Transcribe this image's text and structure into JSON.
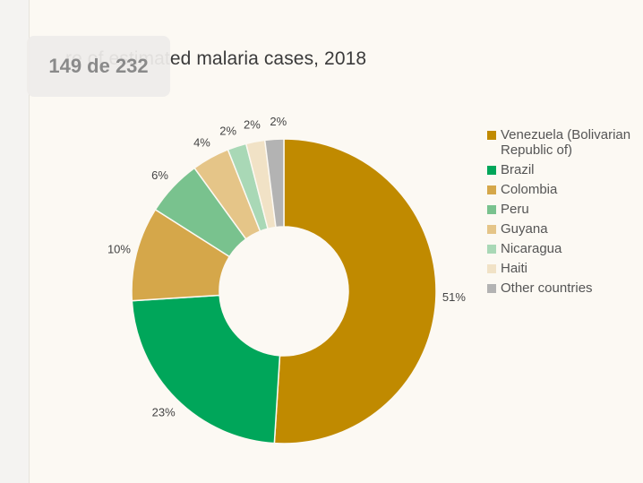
{
  "chart_data": {
    "type": "pie",
    "title": "re of estimated malaria cases, 2018",
    "donut": true,
    "legend_position": "right",
    "slices": [
      {
        "label": "Venezuela (Bolivarian Republic of)",
        "value": 51,
        "value_label": "51%",
        "color": "#c08a00"
      },
      {
        "label": "Brazil",
        "value": 23,
        "value_label": "23%",
        "color": "#00a65a"
      },
      {
        "label": "Colombia",
        "value": 10,
        "value_label": "10%",
        "color": "#d5a74a"
      },
      {
        "label": "Peru",
        "value": 6,
        "value_label": "6%",
        "color": "#79c28e"
      },
      {
        "label": "Guyana",
        "value": 4,
        "value_label": "4%",
        "color": "#e5c588"
      },
      {
        "label": "Nicaragua",
        "value": 2,
        "value_label": "2%",
        "color": "#a9d8b6"
      },
      {
        "label": "Haiti",
        "value": 2,
        "value_label": "2%",
        "color": "#f1e2c6"
      },
      {
        "label": "Other countries",
        "value": 2,
        "value_label": "2%",
        "color": "#b3b3b3"
      }
    ]
  },
  "overlay": {
    "page_counter": "149 de 232"
  }
}
